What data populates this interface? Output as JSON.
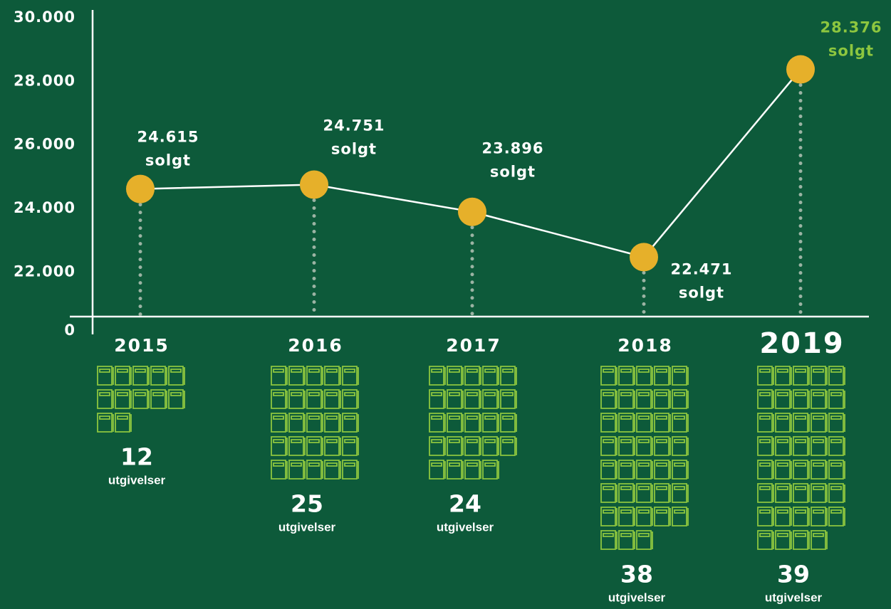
{
  "chart_data": {
    "type": "line",
    "categories": [
      "2015",
      "2016",
      "2017",
      "2018",
      "2019"
    ],
    "series": [
      {
        "name": "solgt",
        "color": "#e6b02a",
        "values": [
          24615,
          24751,
          23896,
          22471,
          28376
        ],
        "value_labels": [
          "24.615",
          "24.751",
          "23.896",
          "22.471",
          "28.376"
        ]
      }
    ],
    "data_label_unit": "solgt",
    "highlight_color": "#8dc63f",
    "ylim": [
      20600,
      30000
    ],
    "yticks": [
      0,
      {
        "value": 22000,
        "label": "22.000"
      },
      {
        "value": 24000,
        "label": "24.000"
      },
      {
        "value": 26000,
        "label": "26.000"
      },
      {
        "value": 28000,
        "label": "28.000"
      },
      {
        "value": 30000,
        "label": "30.000"
      }
    ],
    "releases": {
      "values": [
        12,
        25,
        24,
        38,
        39
      ],
      "label": "utgivelser",
      "color": "#8dc63f"
    }
  }
}
